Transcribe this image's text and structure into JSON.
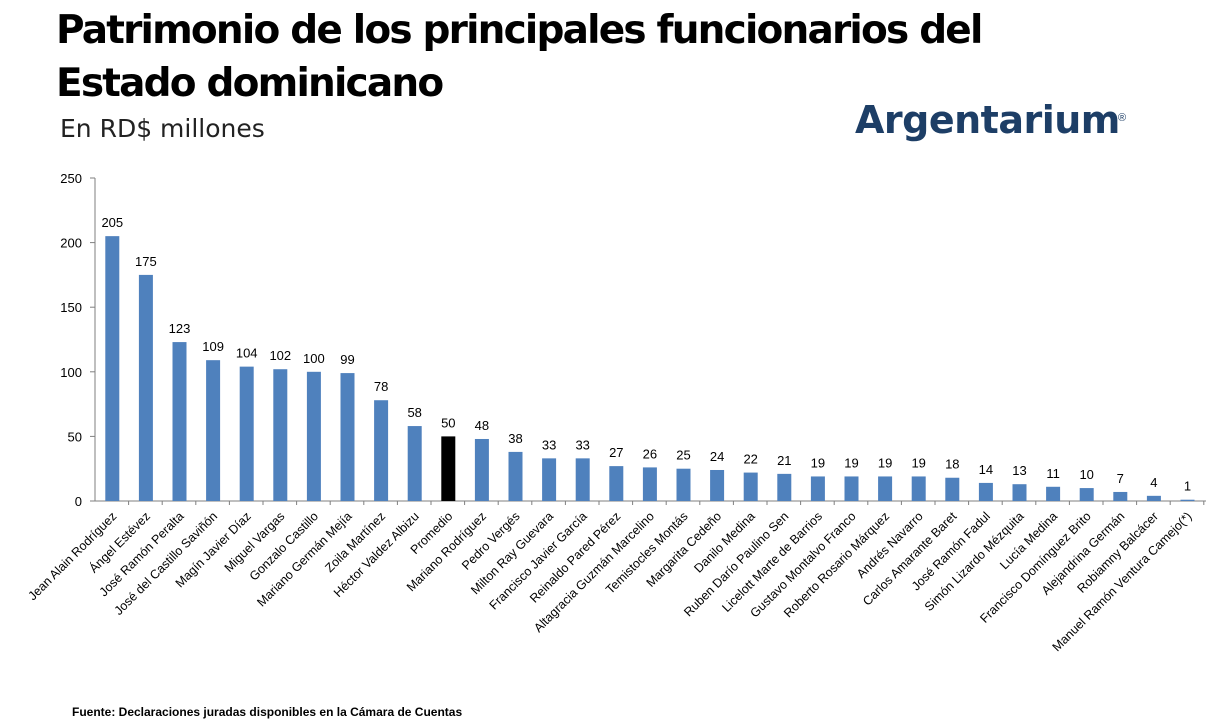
{
  "header": {
    "title": "Patrimonio de los principales funcionarios del Estado dominicano",
    "subtitle": "En RD$ millones"
  },
  "logo": {
    "text": "Argentarium",
    "registered": "®"
  },
  "footer": {
    "source": "Fuente: Declaraciones juradas disponibles en la Cámara de Cuentas"
  },
  "colors": {
    "bar": "#4f81bd",
    "highlight": "#000000",
    "axis": "#7f7f7f",
    "logo": "#1d3e66",
    "logo_accent": "#c8922e"
  },
  "chart_data": {
    "type": "bar",
    "title": "Patrimonio de los principales funcionarios del Estado dominicano",
    "ylabel": "En RD$ millones",
    "xlabel": "",
    "ylim": [
      0,
      250
    ],
    "yticks": [
      0,
      50,
      100,
      150,
      200,
      250
    ],
    "grid": false,
    "highlight_category": "Promedio",
    "categories": [
      "Jean Alain Rodríguez",
      "Ángel Estévez",
      "José Ramón Peralta",
      "José del Castillo Saviñón",
      "Magín Javier Díaz",
      "Miguel Vargas",
      "Gonzalo Castillo",
      "Mariano Germán Mejía",
      "Zoila Martínez",
      "Héctor Valdez Albizu",
      "Promedio",
      "Mariano Rodríguez",
      "Pedro Vergés",
      "Milton Ray Guevara",
      "Francisco Javier García",
      "Reinaldo Pared Pérez",
      "Altagracia Guzmán Marcelino",
      "Temistocles Montás",
      "Margarita Cedeño",
      "Danilo Medina",
      "Ruben Darío Paulino Sen",
      "Licelott Marte de Barrios",
      "Gustavo Montalvo Franco",
      "Roberto Rosario Márquez",
      "Andrés Navarro",
      "Carlos Amarante Baret",
      "José Ramón Fadul",
      "Simón Lizardo Mézquita",
      "Lucía Medina",
      "Francisco Domínguez Brito",
      "Alejandrina Germán",
      "Robiamny Balcácer",
      "Manuel Ramón Ventura Camejo(*)"
    ],
    "values": [
      205,
      175,
      123,
      109,
      104,
      102,
      100,
      99,
      78,
      58,
      50,
      48,
      38,
      33,
      33,
      27,
      26,
      25,
      24,
      22,
      21,
      19,
      19,
      19,
      19,
      18,
      14,
      13,
      11,
      10,
      7,
      4,
      1
    ]
  }
}
